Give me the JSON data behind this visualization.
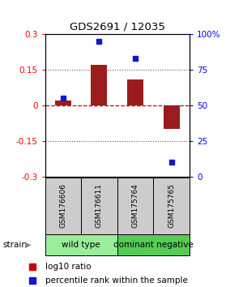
{
  "title": "GDS2691 / 12035",
  "samples": [
    "GSM176606",
    "GSM176611",
    "GSM175764",
    "GSM175765"
  ],
  "log10_ratio": [
    0.02,
    0.17,
    0.11,
    -0.1
  ],
  "percentile_rank": [
    55,
    95,
    83,
    10
  ],
  "ylim_left": [
    -0.3,
    0.3
  ],
  "ylim_right": [
    0,
    100
  ],
  "yticks_left": [
    -0.3,
    -0.15,
    0,
    0.15,
    0.3
  ],
  "yticks_right": [
    0,
    25,
    50,
    75,
    100
  ],
  "ytick_right_labels": [
    "0",
    "25",
    "50",
    "75",
    "100%"
  ],
  "bar_color": "#9B1C1C",
  "dot_color": "#1515CC",
  "zero_line_color": "#CC0000",
  "dotted_color": "#555555",
  "groups": [
    {
      "label": "wild type",
      "samples": [
        0,
        1
      ],
      "color": "#99EE99"
    },
    {
      "label": "dominant negative",
      "samples": [
        2,
        3
      ],
      "color": "#55CC55"
    }
  ],
  "legend_bar_color": "#CC0000",
  "legend_dot_color": "#1515CC",
  "legend_label_bar": "log10 ratio",
  "legend_label_dot": "percentile rank within the sample",
  "strain_label": "strain",
  "background_color": "#ffffff",
  "plot_bg": "#ffffff",
  "sample_box_color": "#cccccc"
}
